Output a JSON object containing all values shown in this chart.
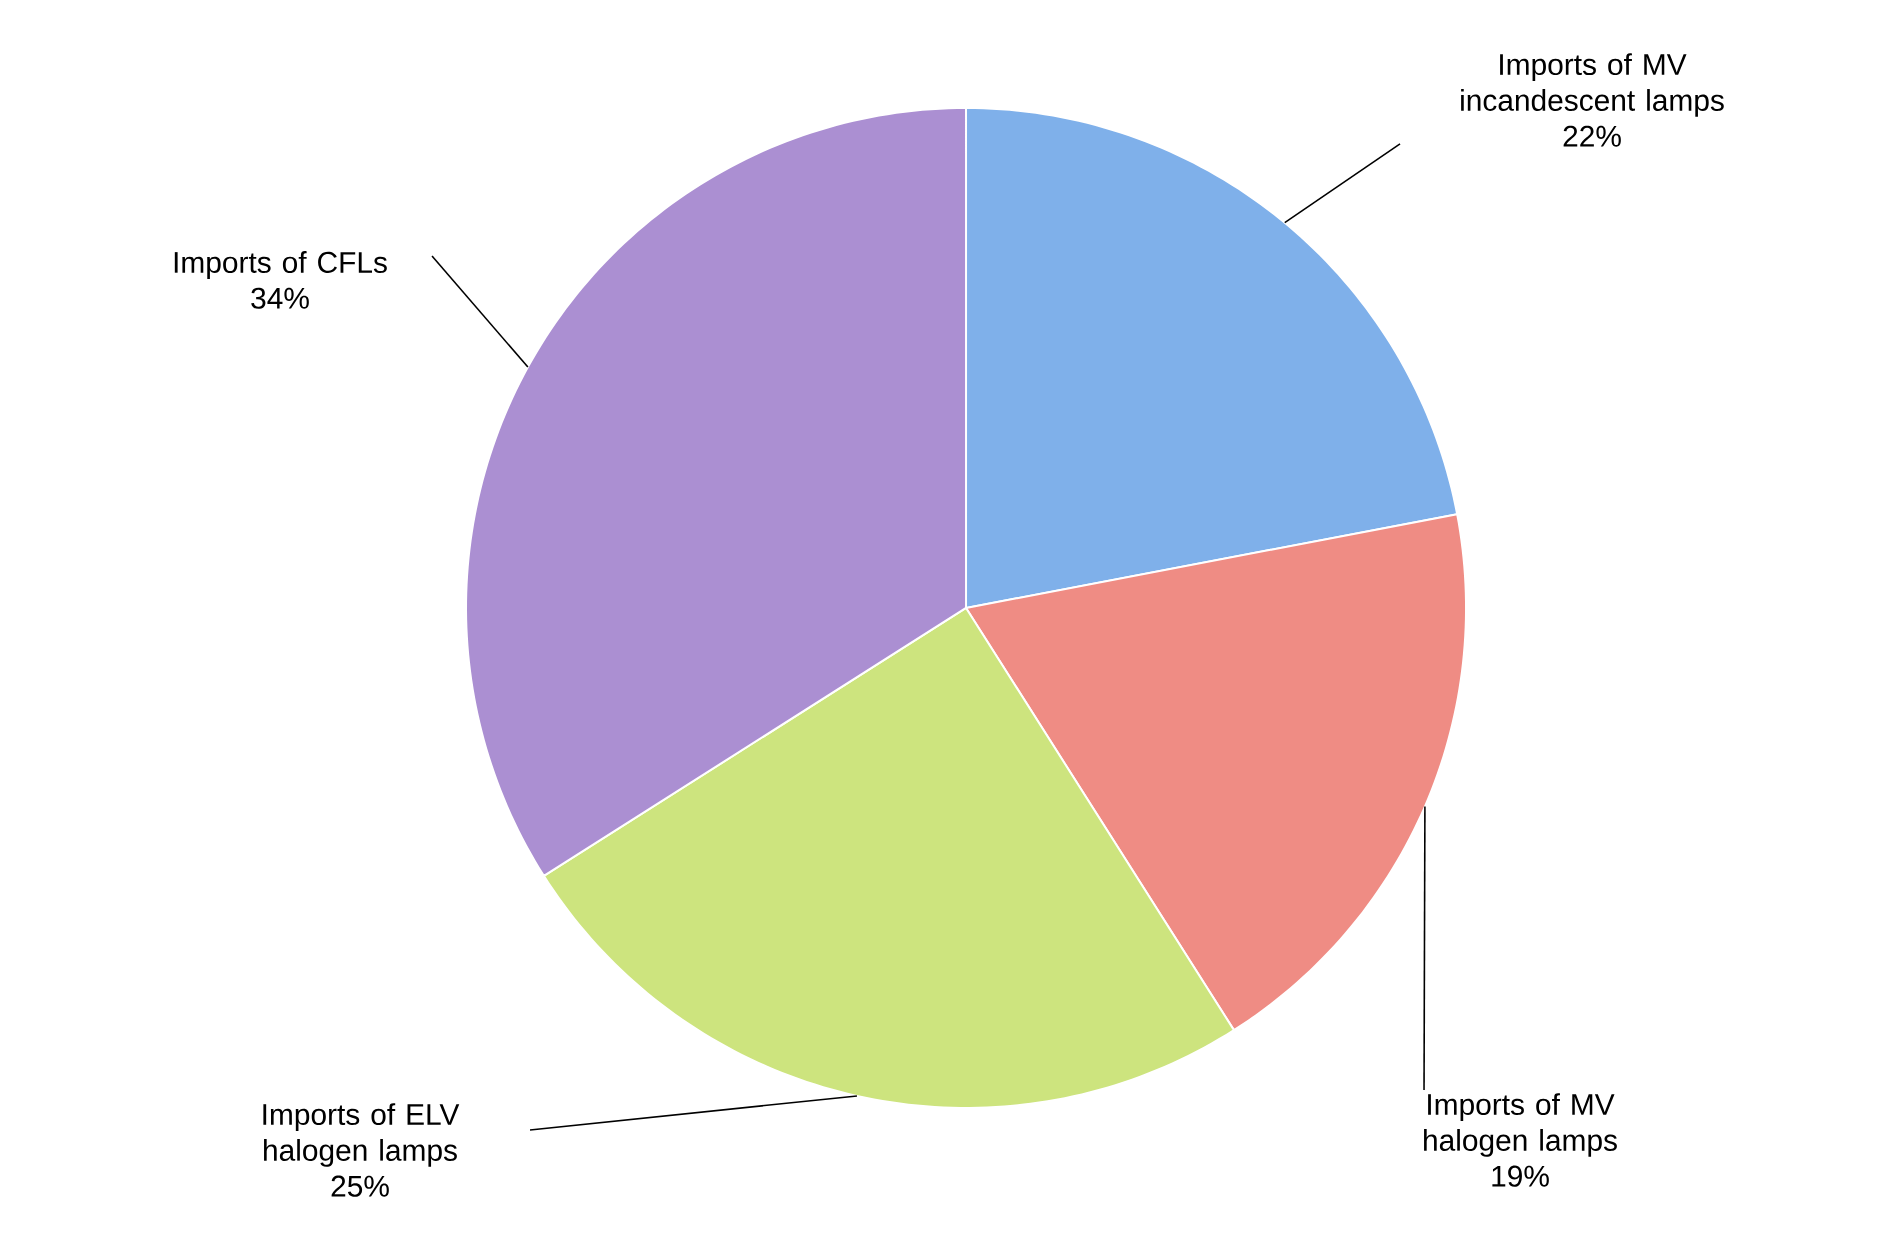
{
  "chart_data": {
    "type": "pie",
    "categories": [
      "Imports of MV incandescent lamps",
      "Imports of MV halogen lamps",
      "Imports of ELV halogen lamps",
      "Imports of CFLs"
    ],
    "values": [
      22,
      19,
      25,
      34
    ],
    "colors": [
      "#7fb0ea",
      "#ef8c84",
      "#cde47e",
      "#ab8fd2"
    ],
    "value_labels": [
      "22%",
      "19%",
      "25%",
      "34%"
    ]
  }
}
